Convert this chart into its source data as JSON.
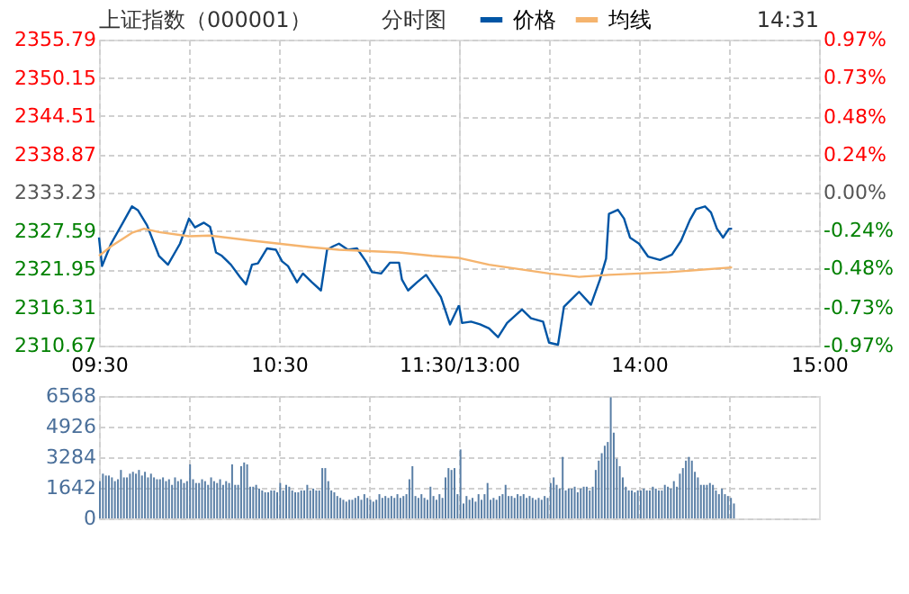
{
  "chart_data": [
    {
      "type": "line",
      "title": "上证指数（000001）",
      "subtitle": "分时图",
      "annotations": [
        "14:31"
      ],
      "legend": "top",
      "grid": true,
      "line_style": "solid",
      "marker": "none",
      "xlim": [
        9.5,
        11.5
      ],
      "xticks": [
        {
          "value": 9.5,
          "label": "09:30"
        },
        {
          "value": 10,
          "label": null
        },
        {
          "value": 10.5,
          "label": "10:30"
        },
        {
          "value": 11,
          "label": null
        },
        {
          "value": 11.5,
          "label": "11:30/13:00"
        }
      ],
      "ylim": [
        2310.67,
        2355.79
      ],
      "yticks": [
        2310.67,
        2316.31,
        2321.95,
        2327.59,
        2333.23,
        2338.87,
        2344.51,
        2350.15,
        2355.79
      ],
      "series": [
        {
          "name": "价格",
          "color": "#0055a5",
          "x": [
            9.5,
            9.517,
            9.567,
            9.633,
            9.683,
            9.717,
            9.767,
            9.833,
            9.883,
            9.95,
            10,
            10.033,
            10.083,
            10.117,
            10.15,
            10.183,
            10.233,
            10.283,
            10.317,
            10.35,
            10.383,
            10.433,
            10.483,
            10.517,
            10.55,
            10.6,
            10.633,
            10.683,
            10.733,
            10.767,
            10.8,
            10.833,
            10.883,
            10.933,
            10.983,
            11.017,
            11.067,
            11.117,
            11.167,
            11.183,
            11.217,
            11.267,
            11.317,
            11.35,
            11.4,
            11.45,
            11.5
          ],
          "values": [
            2326.6,
            2322.4,
            2325.7,
            2328.8,
            2331.2,
            2330.6,
            2328.4,
            2323.9,
            2322.6,
            2325.7,
            2329.4,
            2328.1,
            2328.8,
            2328.2,
            2324.4,
            2323.9,
            2322.6,
            2320.8,
            2319.7,
            2322.6,
            2322.8,
            2325.0,
            2324.8,
            2323.1,
            2322.4,
            2320.0,
            2321.3,
            2320.0,
            2318.8,
            2324.8,
            2325.3,
            2325.7,
            2324.8,
            2325.0,
            2323.1,
            2321.5,
            2321.3,
            2322.9,
            2322.9,
            2320.4,
            2318.8,
            2320.0,
            2321.1,
            2319.8,
            2317.8,
            2313.8,
            2316.6
          ]
        },
        {
          "name": "均线",
          "color": "#f5b46e",
          "x": [
            9.5,
            9.567,
            9.683,
            9.75,
            9.833,
            10,
            10.117,
            10.333,
            10.5,
            10.667,
            10.833,
            11.167,
            11.35,
            11.5
          ],
          "values": [
            2323.9,
            2325.3,
            2327.3,
            2327.9,
            2327.4,
            2326.8,
            2326.9,
            2326.2,
            2325.7,
            2325.2,
            2324.8,
            2324.4,
            2323.9,
            2323.6
          ]
        }
      ]
    },
    {
      "type": "line",
      "grid": true,
      "line_style": "solid",
      "marker": "none",
      "tick_labels": "xy2",
      "xlim": [
        13,
        15
      ],
      "xticks": [
        {
          "value": 13,
          "label": null
        },
        {
          "value": 13.5,
          "label": null
        },
        {
          "value": 14,
          "label": "14:00"
        },
        {
          "value": 14.5,
          "label": null
        },
        {
          "value": 15,
          "label": "15:00"
        }
      ],
      "ylim": [
        2310.67,
        2355.79
      ],
      "y2lim": [
        -0.97,
        0.97
      ],
      "y2ticks": [
        {
          "value": -0.97,
          "label": "-0.97%"
        },
        {
          "value": -0.73,
          "label": "-0.73%"
        },
        {
          "value": -0.48,
          "label": "-0.48%"
        },
        {
          "value": -0.24,
          "label": "-0.24%"
        },
        {
          "value": 0,
          "label": "0.00%"
        },
        {
          "value": 0.24,
          "label": "0.24%"
        },
        {
          "value": 0.48,
          "label": "0.48%"
        },
        {
          "value": 0.73,
          "label": "0.73%"
        },
        {
          "value": 0.97,
          "label": "0.97%"
        }
      ],
      "series": [
        {
          "color": "#0055a5",
          "x": [
            13,
            13.017,
            13.067,
            13.117,
            13.167,
            13.217,
            13.267,
            13.35,
            13.4,
            13.467,
            13.5,
            13.55,
            13.583,
            13.617,
            13.667,
            13.733,
            13.783,
            13.817,
            13.833,
            13.883,
            13.917,
            13.95,
            14,
            14.05,
            14.117,
            14.183,
            14.233,
            14.283,
            14.317,
            14.367,
            14.4,
            14.433,
            14.467,
            14.5,
            14.517
          ],
          "values": [
            2316.6,
            2314.0,
            2314.2,
            2313.8,
            2313.2,
            2311.9,
            2314.0,
            2316.0,
            2314.7,
            2314.2,
            2311.1,
            2310.8,
            2316.4,
            2317.3,
            2318.6,
            2316.7,
            2320.4,
            2323.5,
            2330.1,
            2330.7,
            2329.4,
            2326.6,
            2325.7,
            2323.8,
            2323.3,
            2324.1,
            2326.1,
            2329.2,
            2330.8,
            2331.2,
            2330.3,
            2327.9,
            2326.6,
            2327.9,
            2327.9
          ]
        },
        {
          "color": "#f5b46e",
          "x": [
            13,
            13.167,
            13.5,
            13.667,
            13.833,
            14.167,
            14.517
          ],
          "values": [
            2323.6,
            2322.6,
            2321.3,
            2320.8,
            2321.1,
            2321.5,
            2322.2
          ]
        }
      ]
    },
    {
      "type": "bar",
      "grid": true,
      "tick_labels": "y",
      "color": "#5a7fa6",
      "ylim": [
        0,
        6568
      ],
      "yticks": [
        0,
        1642,
        3284,
        4926,
        6568
      ],
      "categories": [
        null,
        null,
        null,
        null,
        null,
        null,
        null,
        null,
        null,
        null,
        null,
        null,
        null,
        null,
        null,
        null,
        null,
        null,
        null,
        null,
        null,
        null,
        null,
        null,
        null,
        null,
        null,
        null,
        null,
        null,
        null,
        null,
        null,
        null,
        null,
        null,
        null,
        null,
        null,
        null,
        null,
        null,
        null,
        null,
        null,
        null,
        null,
        null,
        null,
        null,
        null,
        null,
        null,
        null,
        null,
        null,
        null,
        null,
        null,
        null,
        null,
        null,
        null,
        null,
        null,
        null,
        null,
        null,
        null,
        null,
        null,
        null,
        null,
        null,
        null,
        null,
        null,
        null,
        null,
        null,
        null,
        null,
        null,
        null,
        null,
        null,
        null,
        null,
        null,
        null,
        null,
        null,
        null,
        null,
        null,
        null,
        null,
        null,
        null,
        null,
        null,
        null,
        null,
        null,
        null,
        null,
        null,
        null,
        null,
        null,
        null,
        null,
        null,
        null,
        null,
        null,
        null,
        null,
        null,
        null,
        null,
        null,
        null,
        null,
        null,
        null,
        null,
        null,
        null,
        null,
        null,
        null,
        null,
        null,
        null,
        null,
        null,
        null,
        null,
        null,
        null,
        null,
        null,
        null,
        null,
        null,
        null,
        null,
        null,
        null,
        null,
        null,
        null,
        null,
        null,
        null,
        null,
        null,
        null,
        null,
        null,
        null,
        null,
        null,
        null,
        null,
        null,
        null,
        null,
        null,
        null,
        null,
        null,
        null,
        null,
        null,
        null,
        null,
        null,
        null,
        null,
        null,
        null,
        null,
        null,
        null,
        null,
        null,
        null,
        null,
        null,
        null,
        null,
        null,
        null,
        null,
        null,
        null,
        null,
        null,
        null,
        null,
        null,
        null,
        null,
        null,
        null,
        null,
        null,
        null,
        null,
        null,
        null,
        null,
        null,
        null,
        null,
        null,
        null,
        null,
        null,
        null,
        null,
        null,
        null,
        null,
        null,
        null,
        null,
        null,
        null,
        null,
        null,
        null,
        null,
        null,
        null,
        null,
        null,
        null
      ],
      "values": [
        2000,
        2400,
        2300,
        2300,
        2200,
        2000,
        2100,
        2600,
        2200,
        2200,
        2400,
        2500,
        2400,
        2600,
        2300,
        2500,
        2200,
        2400,
        2200,
        2100,
        2100,
        2200,
        2000,
        2100,
        1800,
        2200,
        2000,
        2100,
        1900,
        2000,
        2900,
        2100,
        1900,
        1900,
        2100,
        2000,
        1800,
        2200,
        2000,
        1900,
        2100,
        1800,
        2000,
        1900,
        2900,
        1800,
        1800,
        2800,
        3000,
        2900,
        1700,
        1700,
        1800,
        1600,
        1500,
        1400,
        1400,
        1500,
        1500,
        1400,
        1900,
        1500,
        1800,
        1700,
        1500,
        1400,
        1400,
        1500,
        1500,
        1800,
        1500,
        1600,
        1500,
        1500,
        2700,
        2700,
        2000,
        1500,
        1400,
        1200,
        1100,
        1000,
        900,
        1000,
        1000,
        1100,
        1200,
        1000,
        1300,
        1100,
        1000,
        900,
        1000,
        1300,
        1100,
        1200,
        1100,
        1200,
        1100,
        1300,
        1100,
        1200,
        1300,
        2100,
        2800,
        1200,
        1100,
        1300,
        1100,
        1000,
        1700,
        1200,
        1000,
        1300,
        1100,
        2200,
        2700,
        2600,
        2700,
        1300,
        3700,
        800,
        1200,
        1000,
        1100,
        900,
        1300,
        1000,
        1300,
        1900,
        1000,
        1100,
        1000,
        1200,
        1300,
        1800,
        1200,
        1200,
        1100,
        1300,
        1200,
        1300,
        1100,
        1200,
        1100,
        1000,
        1100,
        1000,
        1200,
        1100,
        1900,
        2200,
        1800,
        1600,
        3300,
        1500,
        1600,
        1600,
        1700,
        1400,
        1600,
        1700,
        1700,
        1500,
        1700,
        2600,
        3100,
        3500,
        3900,
        4100,
        6500,
        4600,
        3200,
        2800,
        2200,
        1700,
        1500,
        1500,
        1400,
        1500,
        1500,
        1600,
        1500,
        1500,
        1700,
        1600,
        1500,
        1500,
        1800,
        1700,
        1600,
        2000,
        1700,
        2400,
        2700,
        3100,
        3300,
        3100,
        2500,
        2200,
        1800,
        1800,
        1800,
        1900,
        1800,
        1500,
        1300,
        1600,
        1300,
        1200,
        1100,
        800,
        null,
        null,
        null,
        null,
        null,
        null,
        null,
        null,
        null,
        null,
        null,
        null,
        null,
        null,
        null,
        null,
        null,
        null,
        null,
        null,
        null,
        null,
        null,
        null,
        null,
        null,
        null,
        null
      ]
    }
  ]
}
